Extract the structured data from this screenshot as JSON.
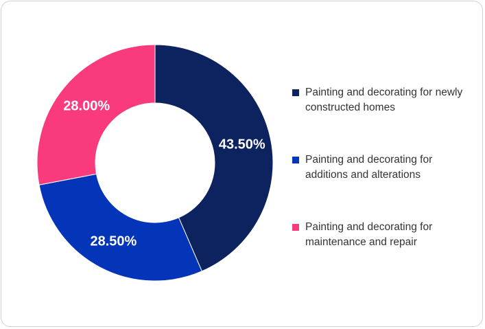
{
  "chart_data": {
    "type": "pie",
    "donut": true,
    "title": "",
    "legend_position": "right",
    "series": [
      {
        "name": "Painting and decorating for newly constructed homes",
        "value": 43.5,
        "label": "43.50%",
        "color": "#0d2360"
      },
      {
        "name": "Painting and decorating for additions and alterations",
        "value": 28.5,
        "label": "28.50%",
        "color": "#0434b8"
      },
      {
        "name": "Painting and decorating for maintenance and repair",
        "value": 28.0,
        "label": "28.00%",
        "color": "#f93a7d"
      }
    ]
  }
}
